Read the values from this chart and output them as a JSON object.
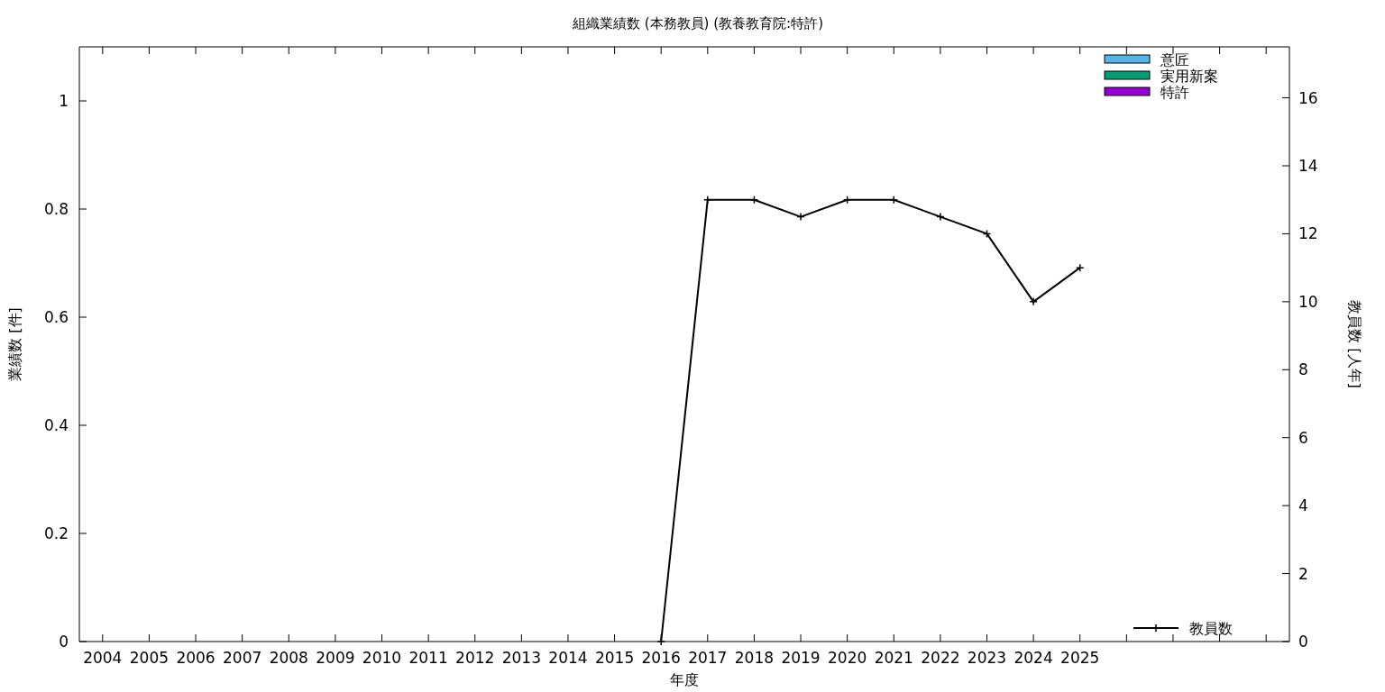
{
  "chart_data": {
    "type": "bar",
    "title": "組織業績数 (本務教員) (教養教育院:特許)",
    "xlabel": "年度",
    "ylabel": "業績数 [件]",
    "y2label": "教員数 [人年]",
    "categories": [
      "2004",
      "2005",
      "2006",
      "2007",
      "2008",
      "2009",
      "2010",
      "2011",
      "2012",
      "2013",
      "2014",
      "2015",
      "2016",
      "2017",
      "2018",
      "2019",
      "2020",
      "2021",
      "2022",
      "2023",
      "2024",
      "2025",
      null,
      null,
      null,
      null
    ],
    "series": [
      {
        "name": "意匠",
        "color": "#56b4e9",
        "values": [
          0,
          0,
          0,
          0,
          0,
          0,
          0,
          0,
          0,
          0,
          0,
          0,
          0,
          0,
          0,
          0,
          0,
          0,
          0,
          0,
          0,
          0,
          null,
          null,
          null,
          null
        ]
      },
      {
        "name": "実用新案",
        "color": "#009e73",
        "values": [
          0,
          0,
          0,
          0,
          0,
          0,
          0,
          0,
          0,
          0,
          0,
          0,
          0,
          0,
          0,
          0,
          0,
          0,
          0,
          0,
          0,
          0,
          null,
          null,
          null,
          null
        ]
      },
      {
        "name": "特許",
        "color": "#9400d3",
        "values": [
          0,
          0,
          0,
          0,
          0,
          0,
          0,
          0,
          0,
          0,
          0,
          0,
          0,
          0,
          0,
          0,
          0,
          0,
          0,
          0,
          0,
          0,
          null,
          null,
          null,
          null
        ]
      },
      {
        "name": "教員数",
        "type": "line",
        "axis": "y2",
        "color": "#000000",
        "values": [
          null,
          null,
          null,
          null,
          null,
          null,
          null,
          null,
          null,
          null,
          null,
          null,
          0,
          13,
          13,
          12.5,
          13,
          13,
          12.5,
          12,
          10,
          11,
          null,
          null,
          null,
          null
        ]
      }
    ],
    "ylim": [
      0,
      1.1
    ],
    "yticks": [
      0,
      0.2,
      0.4,
      0.6,
      0.8,
      1
    ],
    "y2lim": [
      0,
      17.5
    ],
    "y2ticks": [
      0,
      2,
      4,
      6,
      8,
      10,
      12,
      14,
      16
    ],
    "legend": "top right",
    "marker": "cross",
    "grid": false
  }
}
